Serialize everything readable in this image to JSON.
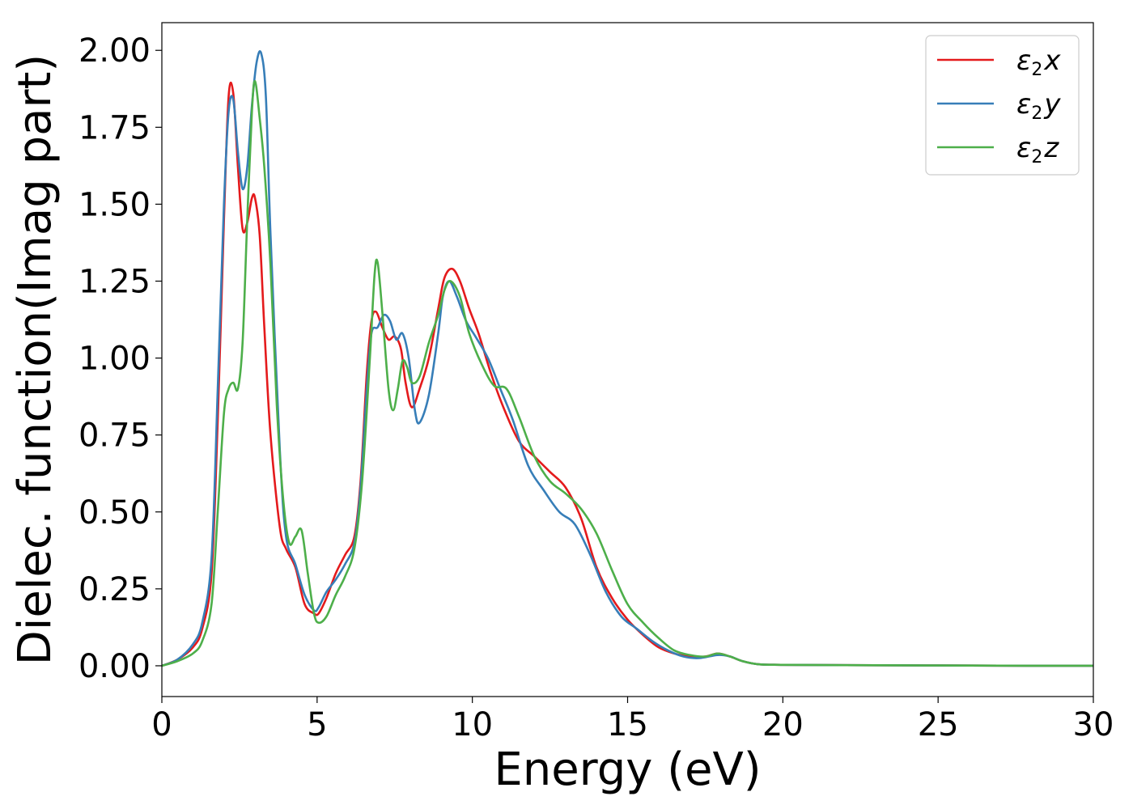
{
  "chart_data": {
    "type": "line",
    "xlabel": "Energy (eV)",
    "ylabel": "Dielec. function(Imag part)",
    "xlim": [
      0,
      30
    ],
    "ylim": [
      -0.1,
      2.09
    ],
    "xticks": [
      0,
      5,
      10,
      15,
      20,
      25,
      30
    ],
    "yticks": [
      0.0,
      0.25,
      0.5,
      0.75,
      1.0,
      1.25,
      1.5,
      1.75,
      2.0
    ],
    "xtick_labels": [
      "0",
      "5",
      "10",
      "15",
      "20",
      "25",
      "30"
    ],
    "ytick_labels": [
      "0.00",
      "0.25",
      "0.50",
      "0.75",
      "1.00",
      "1.25",
      "1.50",
      "1.75",
      "2.00"
    ],
    "grid": false,
    "legend_position": "top-right",
    "series": [
      {
        "name": "ε2x",
        "legend_base": "ε",
        "legend_sub": "2",
        "legend_var": "x",
        "color": "#e41a1c",
        "x": [
          0,
          0.5,
          1.0,
          1.3,
          1.6,
          1.8,
          2.0,
          2.15,
          2.3,
          2.45,
          2.6,
          2.75,
          2.9,
          3.0,
          3.15,
          3.3,
          3.5,
          3.8,
          4.0,
          4.3,
          4.6,
          4.9,
          5.05,
          5.3,
          5.6,
          5.9,
          6.2,
          6.4,
          6.6,
          6.75,
          6.9,
          7.1,
          7.3,
          7.5,
          7.7,
          7.85,
          8.05,
          8.3,
          8.6,
          8.9,
          9.1,
          9.35,
          9.6,
          9.9,
          10.2,
          10.6,
          11.0,
          11.5,
          12.0,
          12.5,
          13.0,
          13.5,
          14.0,
          14.5,
          15.0,
          15.5,
          16.0,
          16.5,
          17.0,
          17.5,
          17.9,
          18.3,
          18.7,
          19.2,
          20.0,
          22.0,
          25.0,
          28.0,
          30.0
        ],
        "y": [
          0.0,
          0.02,
          0.06,
          0.12,
          0.3,
          0.8,
          1.45,
          1.85,
          1.86,
          1.62,
          1.42,
          1.44,
          1.52,
          1.52,
          1.4,
          1.1,
          0.75,
          0.45,
          0.38,
          0.32,
          0.2,
          0.17,
          0.17,
          0.22,
          0.3,
          0.36,
          0.42,
          0.6,
          0.95,
          1.12,
          1.15,
          1.1,
          1.06,
          1.07,
          1.03,
          0.92,
          0.84,
          0.9,
          1.0,
          1.16,
          1.26,
          1.29,
          1.25,
          1.16,
          1.08,
          0.95,
          0.84,
          0.73,
          0.68,
          0.63,
          0.58,
          0.48,
          0.32,
          0.22,
          0.15,
          0.1,
          0.06,
          0.04,
          0.03,
          0.03,
          0.04,
          0.03,
          0.015,
          0.005,
          0.003,
          0.002,
          0.001,
          0.0,
          0.0
        ]
      },
      {
        "name": "ε2y",
        "legend_base": "ε",
        "legend_sub": "2",
        "legend_var": "y",
        "color": "#377eb8",
        "x": [
          0,
          0.5,
          1.0,
          1.3,
          1.6,
          1.8,
          2.0,
          2.15,
          2.3,
          2.45,
          2.6,
          2.75,
          2.9,
          3.05,
          3.2,
          3.35,
          3.5,
          3.8,
          4.0,
          4.3,
          4.6,
          4.9,
          5.05,
          5.3,
          5.6,
          5.9,
          6.2,
          6.4,
          6.6,
          6.75,
          6.95,
          7.15,
          7.35,
          7.55,
          7.75,
          7.95,
          8.15,
          8.3,
          8.6,
          8.9,
          9.05,
          9.25,
          9.5,
          9.8,
          10.1,
          10.5,
          10.9,
          11.3,
          11.8,
          12.3,
          12.8,
          13.3,
          13.8,
          14.3,
          14.8,
          15.3,
          15.8,
          16.3,
          16.8,
          17.3,
          17.9,
          18.3,
          18.7,
          19.2,
          20.0,
          22.0,
          25.0,
          28.0,
          30.0
        ],
        "y": [
          0.0,
          0.02,
          0.07,
          0.14,
          0.35,
          0.9,
          1.5,
          1.8,
          1.84,
          1.67,
          1.55,
          1.62,
          1.82,
          1.96,
          1.99,
          1.85,
          1.4,
          0.7,
          0.42,
          0.33,
          0.23,
          0.18,
          0.19,
          0.24,
          0.28,
          0.33,
          0.4,
          0.58,
          0.9,
          1.08,
          1.1,
          1.14,
          1.12,
          1.06,
          1.08,
          1.0,
          0.83,
          0.79,
          0.88,
          1.08,
          1.2,
          1.25,
          1.2,
          1.12,
          1.07,
          1.0,
          0.9,
          0.8,
          0.65,
          0.57,
          0.5,
          0.46,
          0.36,
          0.24,
          0.16,
          0.12,
          0.08,
          0.05,
          0.03,
          0.025,
          0.035,
          0.03,
          0.015,
          0.005,
          0.003,
          0.002,
          0.001,
          0.0,
          0.0
        ]
      },
      {
        "name": "ε2z",
        "legend_base": "ε",
        "legend_sub": "2",
        "legend_var": "z",
        "color": "#4daf4a",
        "x": [
          0,
          0.5,
          1.0,
          1.3,
          1.6,
          1.8,
          2.0,
          2.15,
          2.3,
          2.45,
          2.6,
          2.75,
          2.9,
          3.0,
          3.15,
          3.3,
          3.5,
          3.7,
          3.9,
          4.1,
          4.3,
          4.5,
          4.7,
          4.9,
          5.05,
          5.3,
          5.6,
          5.9,
          6.2,
          6.45,
          6.7,
          6.85,
          6.95,
          7.1,
          7.3,
          7.45,
          7.6,
          7.75,
          7.9,
          8.05,
          8.3,
          8.6,
          8.9,
          9.1,
          9.3,
          9.6,
          9.9,
          10.3,
          10.7,
          11.1,
          11.5,
          12.0,
          12.5,
          13.0,
          13.5,
          14.0,
          14.5,
          15.0,
          15.5,
          16.0,
          16.5,
          17.0,
          17.5,
          17.9,
          18.3,
          18.7,
          19.2,
          20.0,
          22.0,
          25.0,
          28.0,
          30.0
        ],
        "y": [
          0.0,
          0.015,
          0.04,
          0.08,
          0.2,
          0.5,
          0.82,
          0.9,
          0.92,
          0.9,
          1.05,
          1.45,
          1.8,
          1.9,
          1.78,
          1.62,
          1.3,
          0.85,
          0.55,
          0.4,
          0.42,
          0.44,
          0.3,
          0.17,
          0.14,
          0.16,
          0.23,
          0.29,
          0.38,
          0.6,
          1.0,
          1.27,
          1.31,
          1.15,
          0.9,
          0.83,
          0.9,
          0.99,
          0.97,
          0.92,
          0.94,
          1.05,
          1.14,
          1.22,
          1.25,
          1.2,
          1.08,
          0.98,
          0.91,
          0.9,
          0.81,
          0.68,
          0.6,
          0.56,
          0.51,
          0.43,
          0.31,
          0.2,
          0.14,
          0.09,
          0.05,
          0.035,
          0.03,
          0.04,
          0.03,
          0.015,
          0.005,
          0.003,
          0.002,
          0.001,
          0.0,
          0.0
        ]
      }
    ]
  }
}
